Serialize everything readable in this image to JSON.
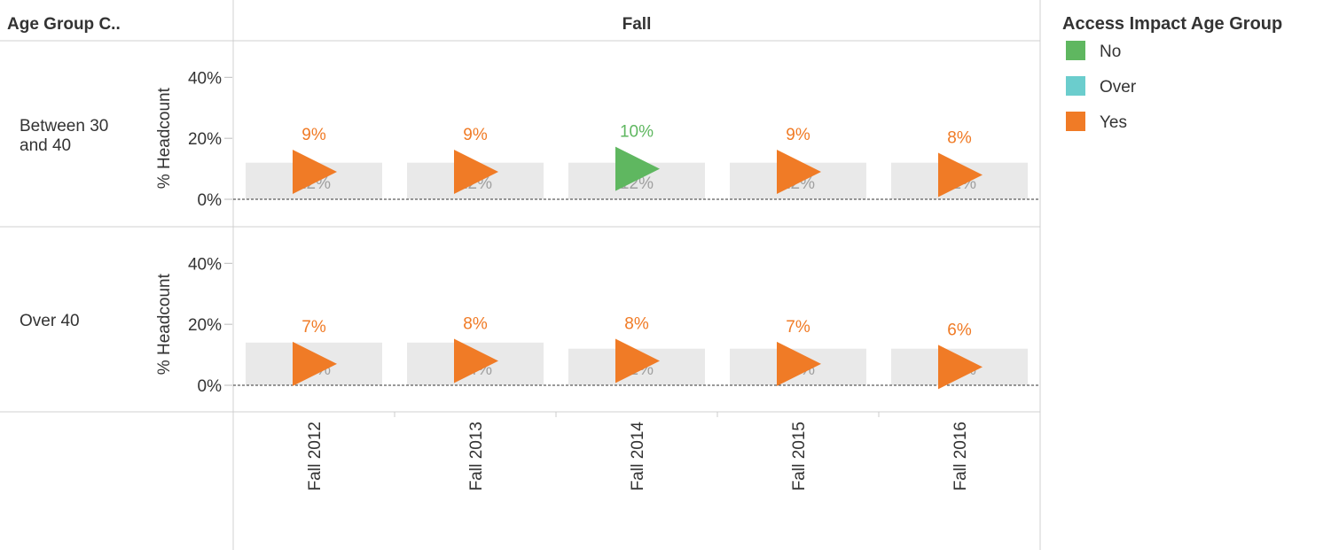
{
  "chart_data": {
    "type": "bar",
    "row_header_label": "Age Group C..",
    "column_header": "Fall",
    "ylabel": "% Headcount",
    "ylim": [
      -9,
      52
    ],
    "yticks": [
      {
        "value": 0,
        "label": "0%"
      },
      {
        "value": 20,
        "label": "20%"
      },
      {
        "value": 40,
        "label": "40%"
      }
    ],
    "categories": [
      "Fall 2012",
      "Fall 2013",
      "Fall 2014",
      "Fall 2015",
      "Fall 2016"
    ],
    "bar_color": "#e9e9e9",
    "legend": {
      "title": "Access Impact Age Group",
      "items": [
        {
          "name": "No",
          "color": "#5fb760"
        },
        {
          "name": "Over",
          "color": "#6bcdcd"
        },
        {
          "name": "Yes",
          "color": "#f07b26"
        }
      ]
    },
    "rows": [
      {
        "label": [
          "Between 30",
          "and 40"
        ],
        "bar_values": [
          12,
          12,
          12,
          12,
          12
        ],
        "bar_labels": [
          "12%",
          "12%",
          "12%",
          "12%",
          "12%"
        ],
        "marker_values": [
          9,
          9,
          10,
          9,
          8
        ],
        "marker_labels": [
          "9%",
          "9%",
          "10%",
          "9%",
          "8%"
        ],
        "marker_groups": [
          "Yes",
          "Yes",
          "No",
          "Yes",
          "Yes"
        ]
      },
      {
        "label": [
          "Over 40"
        ],
        "bar_values": [
          14,
          14,
          12,
          12,
          12
        ],
        "bar_labels": [
          "14%",
          "14%",
          "12%",
          "12%",
          "12%"
        ],
        "marker_values": [
          7,
          8,
          8,
          7,
          6
        ],
        "marker_labels": [
          "7%",
          "8%",
          "8%",
          "7%",
          "6%"
        ],
        "marker_groups": [
          "Yes",
          "Yes",
          "Yes",
          "Yes",
          "Yes"
        ]
      }
    ]
  }
}
